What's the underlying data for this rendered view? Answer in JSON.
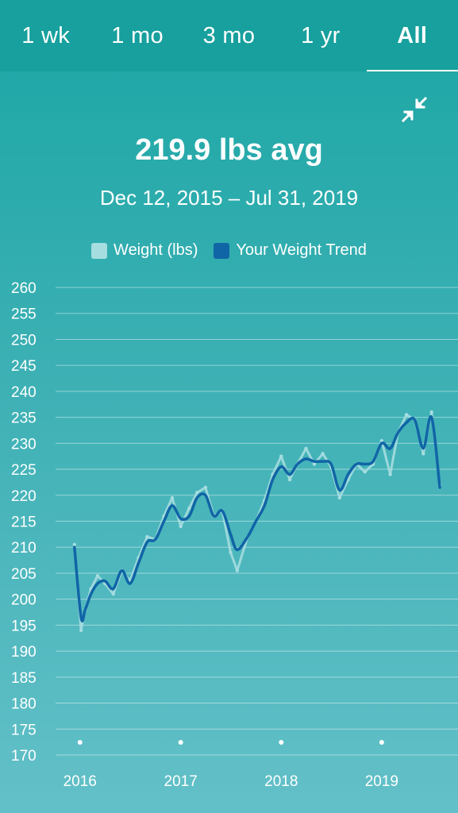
{
  "tabs": [
    {
      "label": "1 wk",
      "active": false
    },
    {
      "label": "1 mo",
      "active": false
    },
    {
      "label": "3 mo",
      "active": false
    },
    {
      "label": "1 yr",
      "active": false
    },
    {
      "label": "All",
      "active": true
    }
  ],
  "collapse_icon": "collapse-arrows-icon",
  "summary": {
    "average": "219.9 lbs avg",
    "date_range": "Dec 12, 2015 – Jul 31, 2019"
  },
  "colors": {
    "weight": "#a6dde0",
    "trend": "#1065a6",
    "grid": "#ffffff"
  },
  "chart_data": {
    "type": "line",
    "title": "",
    "xlabel": "",
    "ylabel": "",
    "ylim": [
      170,
      260
    ],
    "yticks": [
      260,
      255,
      250,
      245,
      240,
      235,
      230,
      225,
      220,
      215,
      210,
      205,
      200,
      195,
      190,
      185,
      180,
      175,
      170
    ],
    "xticks": [
      "2016",
      "2017",
      "2018",
      "2019"
    ],
    "legend": {
      "placement": "top-center",
      "entries": [
        "Weight (lbs)",
        "Your Weight Trend"
      ]
    },
    "grid": true,
    "series": [
      {
        "name": "Weight (lbs)",
        "x": [
          "2015-12-12",
          "2016-01-05",
          "2016-01-20",
          "2016-02-10",
          "2016-03-05",
          "2016-04-01",
          "2016-05-01",
          "2016-06-01",
          "2016-07-01",
          "2016-08-01",
          "2016-09-01",
          "2016-10-01",
          "2016-11-01",
          "2016-12-01",
          "2017-01-01",
          "2017-02-01",
          "2017-03-01",
          "2017-04-01",
          "2017-05-01",
          "2017-06-01",
          "2017-07-01",
          "2017-07-25",
          "2017-09-01",
          "2017-10-01",
          "2017-11-01",
          "2017-12-01",
          "2018-01-01",
          "2018-02-01",
          "2018-03-01",
          "2018-04-01",
          "2018-05-01",
          "2018-06-01",
          "2018-07-01",
          "2018-08-01",
          "2018-09-01",
          "2018-10-01",
          "2018-11-01",
          "2018-12-01",
          "2019-01-01",
          "2019-02-01",
          "2019-03-01",
          "2019-04-01",
          "2019-05-01",
          "2019-06-01",
          "2019-07-01",
          "2019-07-31"
        ],
        "values": [
          210.5,
          194.0,
          198.0,
          202.0,
          204.5,
          203.0,
          201.0,
          205.5,
          203.5,
          208.0,
          212.0,
          211.5,
          216.0,
          219.5,
          214.0,
          217.5,
          220.5,
          221.5,
          216.0,
          217.0,
          209.0,
          205.5,
          212.0,
          215.0,
          219.0,
          224.0,
          227.5,
          223.0,
          226.0,
          229.0,
          226.0,
          228.0,
          225.5,
          219.5,
          223.0,
          226.0,
          224.5,
          226.0,
          230.5,
          224.0,
          232.0,
          235.5,
          234.5,
          228.0,
          236.0,
          222.0
        ]
      },
      {
        "name": "Your Weight Trend",
        "x": [
          "2015-12-12",
          "2016-01-05",
          "2016-01-20",
          "2016-02-10",
          "2016-03-05",
          "2016-04-01",
          "2016-05-01",
          "2016-06-01",
          "2016-07-01",
          "2016-08-01",
          "2016-09-01",
          "2016-10-01",
          "2016-11-01",
          "2016-12-01",
          "2017-01-01",
          "2017-02-01",
          "2017-03-01",
          "2017-04-01",
          "2017-05-01",
          "2017-06-01",
          "2017-07-01",
          "2017-07-25",
          "2017-09-01",
          "2017-10-01",
          "2017-11-01",
          "2017-12-01",
          "2018-01-01",
          "2018-02-01",
          "2018-03-01",
          "2018-04-01",
          "2018-05-01",
          "2018-06-01",
          "2018-07-01",
          "2018-08-01",
          "2018-09-01",
          "2018-10-01",
          "2018-11-01",
          "2018-12-01",
          "2019-01-01",
          "2019-02-01",
          "2019-03-01",
          "2019-04-01",
          "2019-05-01",
          "2019-06-01",
          "2019-07-01",
          "2019-07-31"
        ],
        "values": [
          210.0,
          196.5,
          198.0,
          201.0,
          203.0,
          203.5,
          202.0,
          205.5,
          203.0,
          207.0,
          211.0,
          211.5,
          215.0,
          218.0,
          215.5,
          216.0,
          219.5,
          220.0,
          216.0,
          217.0,
          212.5,
          209.5,
          212.0,
          215.0,
          218.0,
          223.0,
          225.5,
          224.0,
          226.0,
          227.0,
          226.5,
          226.5,
          226.0,
          221.0,
          224.0,
          226.0,
          226.0,
          226.5,
          230.0,
          229.0,
          232.0,
          234.0,
          234.5,
          229.0,
          235.0,
          221.5
        ]
      }
    ]
  }
}
